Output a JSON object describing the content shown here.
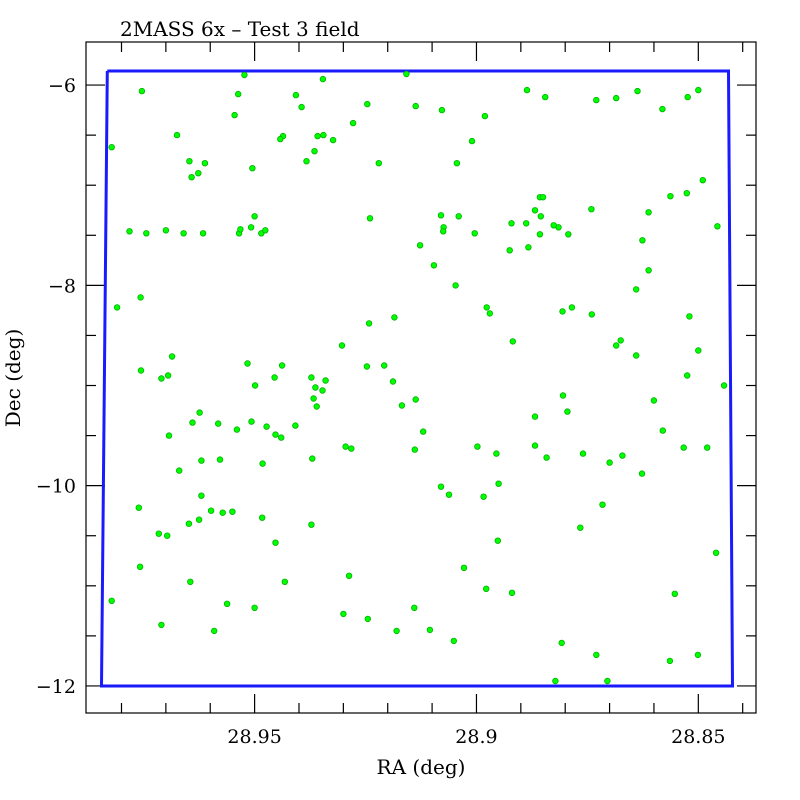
{
  "chart_data": {
    "type": "scatter",
    "title": "2MASS 6x – Test 3 field",
    "xlabel": "RA (deg)",
    "ylabel": "Dec (deg)",
    "xlim": [
      28.988,
      28.837
    ],
    "ylim": [
      -12.27,
      -5.57
    ],
    "x_reversed": true,
    "grid": false,
    "x_ticks": [
      {
        "value": 28.95,
        "label": "28.95"
      },
      {
        "value": 28.9,
        "label": "28.9"
      },
      {
        "value": 28.85,
        "label": "28.85"
      }
    ],
    "y_ticks": [
      {
        "value": -6,
        "label": "−6"
      },
      {
        "value": -8,
        "label": "−8"
      },
      {
        "value": -10,
        "label": "−10"
      },
      {
        "value": -12,
        "label": "−12"
      }
    ],
    "boundary": {
      "color": "#1a1aff",
      "points": [
        [
          28.9832,
          -5.86
        ],
        [
          28.8432,
          -5.86
        ],
        [
          28.8423,
          -12.0
        ],
        [
          28.9845,
          -12.0
        ],
        [
          28.9832,
          -5.86
        ]
      ]
    },
    "point_color": "#00ff00",
    "series": [
      {
        "points": [
          [
            28.9754,
            -6.06
          ],
          [
            28.9675,
            -6.5
          ],
          [
            28.9744,
            -7.48
          ],
          [
            28.966,
            -7.48
          ],
          [
            28.9616,
            -7.48
          ],
          [
            28.9535,
            -7.48
          ],
          [
            28.9532,
            -7.44
          ],
          [
            28.9537,
            -6.09
          ],
          [
            28.9523,
            -5.9
          ],
          [
            28.9346,
            -5.94
          ],
          [
            28.9158,
            -5.89
          ],
          [
            28.9545,
            -6.3
          ],
          [
            28.9394,
            -6.22
          ],
          [
            28.9383,
            -6.76
          ],
          [
            28.9345,
            -6.5
          ],
          [
            28.9323,
            -6.55
          ],
          [
            28.9278,
            -6.38
          ],
          [
            28.9246,
            -6.19
          ],
          [
            28.922,
            -6.78
          ],
          [
            28.9137,
            -6.21
          ],
          [
            28.9078,
            -6.25
          ],
          [
            28.8981,
            -6.31
          ],
          [
            28.8886,
            -6.05
          ],
          [
            28.8845,
            -6.12
          ],
          [
            28.873,
            -6.15
          ],
          [
            28.8685,
            -6.13
          ],
          [
            28.8637,
            -6.06
          ],
          [
            28.8581,
            -6.24
          ],
          [
            28.8524,
            -6.12
          ],
          [
            28.849,
            -6.95
          ],
          [
            28.85,
            -6.05
          ],
          [
            28.8563,
            -7.11
          ],
          [
            28.8526,
            -7.08
          ],
          [
            28.8457,
            -7.41
          ],
          [
            28.8626,
            -7.55
          ],
          [
            28.8612,
            -7.27
          ],
          [
            28.8741,
            -7.24
          ],
          [
            28.8793,
            -7.49
          ],
          [
            28.874,
            -8.29
          ],
          [
            28.8785,
            -8.22
          ],
          [
            28.8806,
            -8.26
          ],
          [
            28.864,
            -8.04
          ],
          [
            28.8675,
            -8.55
          ],
          [
            28.8612,
            -7.85
          ],
          [
            28.8685,
            -8.6
          ],
          [
            28.864,
            -8.7
          ],
          [
            28.852,
            -8.31
          ],
          [
            28.85,
            -8.65
          ],
          [
            28.8525,
            -8.9
          ],
          [
            28.8442,
            -9.0
          ],
          [
            28.858,
            -9.45
          ],
          [
            28.8533,
            -9.62
          ],
          [
            28.848,
            -9.62
          ],
          [
            28.86,
            -9.15
          ],
          [
            28.8671,
            -9.7
          ],
          [
            28.87,
            -9.77
          ],
          [
            28.8627,
            -9.88
          ],
          [
            28.8716,
            -10.19
          ],
          [
            28.8766,
            -10.42
          ],
          [
            28.8553,
            -11.08
          ],
          [
            28.846,
            -10.67
          ],
          [
            28.8501,
            -11.69
          ],
          [
            28.8564,
            -11.75
          ],
          [
            28.873,
            -11.69
          ],
          [
            28.8705,
            -11.95
          ],
          [
            28.8822,
            -11.95
          ],
          [
            28.8808,
            -11.57
          ],
          [
            28.9105,
            -11.44
          ],
          [
            28.9051,
            -11.55
          ],
          [
            28.8978,
            -11.03
          ],
          [
            28.892,
            -11.07
          ],
          [
            28.9028,
            -10.82
          ],
          [
            28.8952,
            -10.55
          ],
          [
            28.8984,
            -10.11
          ],
          [
            28.9062,
            -10.09
          ],
          [
            28.908,
            -10.01
          ],
          [
            28.895,
            -9.98
          ],
          [
            28.8955,
            -9.68
          ],
          [
            28.8998,
            -9.61
          ],
          [
            28.8868,
            -9.31
          ],
          [
            28.8868,
            -9.6
          ],
          [
            28.8842,
            -9.72
          ],
          [
            28.8805,
            -9.1
          ],
          [
            28.8795,
            -9.26
          ],
          [
            28.876,
            -9.68
          ],
          [
            28.8918,
            -8.56
          ],
          [
            28.8977,
            -8.22
          ],
          [
            28.897,
            -8.28
          ],
          [
            28.9047,
            -8.0
          ],
          [
            28.9074,
            -7.42
          ],
          [
            28.908,
            -7.3
          ],
          [
            28.9096,
            -7.8
          ],
          [
            28.9127,
            -7.6
          ],
          [
            28.901,
            -6.56
          ],
          [
            28.9044,
            -6.78
          ],
          [
            28.9004,
            -7.48
          ],
          [
            28.9075,
            -7.46
          ],
          [
            28.904,
            -7.31
          ],
          [
            28.8857,
            -7.49
          ],
          [
            28.8855,
            -7.31
          ],
          [
            28.8868,
            -7.25
          ],
          [
            28.8888,
            -7.38
          ],
          [
            28.8921,
            -7.38
          ],
          [
            28.8815,
            -7.42
          ],
          [
            28.8826,
            -7.4
          ],
          [
            28.8883,
            -7.62
          ],
          [
            28.8925,
            -7.65
          ],
          [
            28.8857,
            -7.12
          ],
          [
            28.885,
            -7.12
          ],
          [
            28.924,
            -7.33
          ],
          [
            28.9365,
            -6.66
          ],
          [
            28.9358,
            -6.51
          ],
          [
            28.9407,
            -6.1
          ],
          [
            28.9436,
            -6.51
          ],
          [
            28.9485,
            -7.48
          ],
          [
            28.9476,
            -7.45
          ],
          [
            28.9508,
            -7.42
          ],
          [
            28.95,
            -7.31
          ],
          [
            28.9442,
            -6.54
          ],
          [
            28.9505,
            -6.83
          ],
          [
            28.9612,
            -6.78
          ],
          [
            28.9627,
            -6.88
          ],
          [
            28.9647,
            -6.76
          ],
          [
            28.9642,
            -6.92
          ],
          [
            28.97,
            -7.45
          ],
          [
            28.9782,
            -7.46
          ],
          [
            28.9822,
            -6.62
          ],
          [
            28.981,
            -8.22
          ],
          [
            28.9757,
            -8.12
          ],
          [
            28.9756,
            -8.85
          ],
          [
            28.9695,
            -8.9
          ],
          [
            28.9686,
            -8.71
          ],
          [
            28.971,
            -8.93
          ],
          [
            28.9693,
            -9.5
          ],
          [
            28.964,
            -9.37
          ],
          [
            28.9624,
            -9.27
          ],
          [
            28.9582,
            -9.38
          ],
          [
            28.954,
            -9.44
          ],
          [
            28.9516,
            -8.78
          ],
          [
            28.9499,
            -9.0
          ],
          [
            28.9507,
            -9.36
          ],
          [
            28.9482,
            -9.78
          ],
          [
            28.944,
            -9.52
          ],
          [
            28.9408,
            -9.4
          ],
          [
            28.9438,
            -8.8
          ],
          [
            28.9473,
            -9.41
          ],
          [
            28.9455,
            -8.92
          ],
          [
            28.937,
            -9.73
          ],
          [
            28.9347,
            -9.05
          ],
          [
            28.9363,
            -9.02
          ],
          [
            28.934,
            -8.95
          ],
          [
            28.936,
            -9.21
          ],
          [
            28.9295,
            -9.61
          ],
          [
            28.9282,
            -9.63
          ],
          [
            28.9188,
            -8.96
          ],
          [
            28.9168,
            -9.2
          ],
          [
            28.9137,
            -9.14
          ],
          [
            28.912,
            -9.46
          ],
          [
            28.9139,
            -9.64
          ],
          [
            28.9208,
            -8.8
          ],
          [
            28.9247,
            -8.81
          ],
          [
            28.9185,
            -8.32
          ],
          [
            28.9242,
            -8.38
          ],
          [
            28.9303,
            -8.6
          ],
          [
            28.9372,
            -8.92
          ],
          [
            28.9367,
            -9.13
          ],
          [
            28.9453,
            -9.49
          ],
          [
            28.9578,
            -9.74
          ],
          [
            28.962,
            -9.75
          ],
          [
            28.967,
            -9.85
          ],
          [
            28.9761,
            -10.22
          ],
          [
            28.9697,
            -10.5
          ],
          [
            28.9716,
            -10.48
          ],
          [
            28.9758,
            -10.81
          ],
          [
            28.9822,
            -11.15
          ],
          [
            28.9648,
            -10.38
          ],
          [
            28.9625,
            -10.34
          ],
          [
            28.962,
            -10.1
          ],
          [
            28.9598,
            -10.25
          ],
          [
            28.9572,
            -10.27
          ],
          [
            28.955,
            -10.26
          ],
          [
            28.9483,
            -10.32
          ],
          [
            28.9453,
            -10.57
          ],
          [
            28.9432,
            -10.96
          ],
          [
            28.9372,
            -10.39
          ],
          [
            28.9287,
            -10.9
          ],
          [
            28.9245,
            -11.33
          ],
          [
            28.918,
            -11.45
          ],
          [
            28.914,
            -11.22
          ],
          [
            28.93,
            -11.28
          ],
          [
            28.95,
            -11.22
          ],
          [
            28.9645,
            -10.96
          ],
          [
            28.9562,
            -11.18
          ],
          [
            28.9591,
            -11.45
          ],
          [
            28.971,
            -11.39
          ]
        ]
      }
    ]
  }
}
